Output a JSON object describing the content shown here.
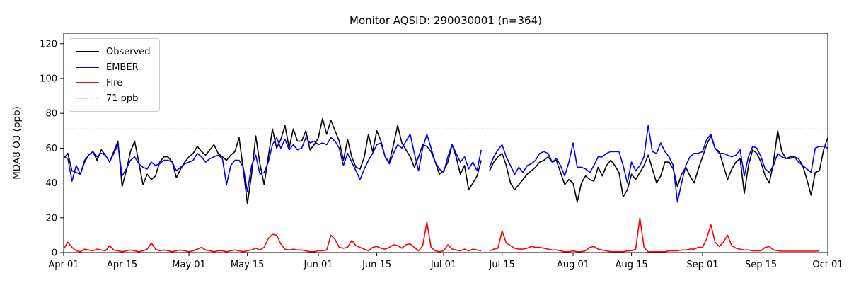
{
  "title": "Monitor AQSID: 290030001 (n=364)",
  "axes": {
    "ylabel": "MDA8 O3 (ppb)",
    "y_ticks": [
      0,
      20,
      40,
      60,
      80,
      100,
      120
    ],
    "x_ticks": [
      {
        "day": 0,
        "label": "Apr 01"
      },
      {
        "day": 14,
        "label": "Apr 15"
      },
      {
        "day": 30,
        "label": "May 01"
      },
      {
        "day": 44,
        "label": "May 15"
      },
      {
        "day": 61,
        "label": "Jun 01"
      },
      {
        "day": 75,
        "label": "Jun 15"
      },
      {
        "day": 91,
        "label": "Jul 01"
      },
      {
        "day": 105,
        "label": "Jul 15"
      },
      {
        "day": 122,
        "label": "Aug 01"
      },
      {
        "day": 136,
        "label": "Aug 15"
      },
      {
        "day": 153,
        "label": "Sep 01"
      },
      {
        "day": 167,
        "label": "Sep 15"
      },
      {
        "day": 183,
        "label": "Oct 01"
      }
    ]
  },
  "legend": {
    "items": [
      {
        "label": "Observed",
        "color": "#000000",
        "style": "solid"
      },
      {
        "label": "EMBER",
        "color": "#0000ff",
        "style": "solid"
      },
      {
        "label": "Fire",
        "color": "#ff0000",
        "style": "solid"
      },
      {
        "label": "71 ppb",
        "color": "#c8c8c8",
        "style": "dotted"
      }
    ]
  },
  "chart_data": {
    "type": "line",
    "title": "Monitor AQSID: 290030001 (n=364)",
    "ylabel": "MDA8 O3 (ppb)",
    "xlabel": "",
    "ylim": [
      0,
      126
    ],
    "x_unit": "days from Apr 01",
    "x_max_day": 183,
    "x_tick_labels": [
      "Apr 01",
      "Apr 15",
      "May 01",
      "May 15",
      "Jun 01",
      "Jun 15",
      "Jul 01",
      "Jul 15",
      "Aug 01",
      "Aug 15",
      "Sep 01",
      "Sep 15",
      "Oct 01"
    ],
    "x_tick_days": [
      0,
      14,
      30,
      44,
      61,
      75,
      91,
      105,
      122,
      136,
      153,
      167,
      183
    ],
    "grid": false,
    "legend_position": "upper left",
    "reference_line": {
      "value": 71,
      "label": "71 ppb",
      "color": "#c8c8c8",
      "style": "dotted"
    },
    "series": [
      {
        "name": "Observed",
        "color": "#000000",
        "values": [
          54,
          57,
          47,
          46,
          45,
          52,
          56,
          58,
          53,
          59,
          56,
          52,
          58,
          64,
          38,
          47,
          58,
          64,
          52,
          39,
          45,
          42,
          44,
          52,
          55,
          55,
          52,
          43,
          48,
          52,
          55,
          57,
          61,
          58,
          56,
          59,
          62,
          57,
          55,
          53,
          56,
          58,
          66,
          48,
          28,
          45,
          67,
          51,
          39,
          55,
          71,
          60,
          65,
          73,
          60,
          71,
          64,
          64,
          70,
          59,
          62,
          66,
          77,
          68,
          76,
          70,
          64,
          53,
          65,
          55,
          49,
          48,
          55,
          68,
          58,
          70,
          64,
          55,
          52,
          62,
          73,
          63,
          59,
          55,
          49,
          55,
          62,
          61,
          58,
          52,
          45,
          47,
          52,
          62,
          55,
          45,
          50,
          36,
          40,
          44,
          53,
          null,
          47,
          52,
          55,
          57,
          50,
          40,
          36,
          39,
          42,
          45,
          47,
          49,
          52,
          53,
          55,
          52,
          53,
          46,
          39,
          42,
          40,
          29,
          40,
          44,
          42,
          41,
          49,
          44,
          50,
          53,
          50,
          46,
          32,
          36,
          45,
          42,
          46,
          50,
          56,
          48,
          40,
          44,
          52,
          52,
          48,
          38,
          45,
          49,
          44,
          40,
          48,
          55,
          62,
          67,
          60,
          58,
          50,
          42,
          48,
          52,
          54,
          34,
          50,
          59,
          57,
          52,
          44,
          40,
          52,
          70,
          58,
          54,
          55,
          55,
          54,
          50,
          42,
          33,
          46,
          47,
          59,
          66
        ]
      },
      {
        "name": "EMBER",
        "color": "#0000ff",
        "values": [
          55,
          54,
          41,
          50,
          45,
          53,
          56,
          58,
          55,
          57,
          56,
          52,
          57,
          62,
          44,
          48,
          53,
          55,
          51,
          49,
          48,
          52,
          50,
          51,
          53,
          53,
          52,
          47,
          49,
          51,
          52,
          53,
          57,
          55,
          52,
          54,
          55,
          56,
          54,
          39,
          50,
          53,
          53,
          49,
          35,
          50,
          56,
          45,
          46,
          52,
          62,
          66,
          60,
          65,
          59,
          62,
          59,
          60,
          66,
          63,
          64,
          62,
          63,
          62,
          66,
          64,
          60,
          50,
          57,
          52,
          47,
          42,
          48,
          53,
          57,
          62,
          63,
          55,
          51,
          57,
          62,
          60,
          64,
          68,
          57,
          47,
          60,
          68,
          60,
          52,
          48,
          46,
          55,
          62,
          57,
          52,
          55,
          48,
          52,
          47,
          59,
          null,
          49,
          55,
          59,
          62,
          55,
          50,
          45,
          49,
          46,
          50,
          51,
          53,
          57,
          58,
          57,
          52,
          54,
          50,
          44,
          52,
          63,
          49,
          49,
          48,
          46,
          50,
          55,
          55,
          57,
          58,
          58,
          58,
          50,
          40,
          52,
          47,
          50,
          55,
          73,
          58,
          57,
          63,
          58,
          55,
          50,
          29,
          40,
          50,
          55,
          57,
          57,
          58,
          65,
          68,
          60,
          57,
          57,
          56,
          55,
          56,
          59,
          44,
          55,
          61,
          60,
          55,
          48,
          46,
          50,
          57,
          55,
          54,
          54,
          55,
          52,
          50,
          48,
          46,
          60,
          61,
          61,
          60
        ]
      },
      {
        "name": "Fire",
        "color": "#ff0000",
        "values": [
          2,
          6,
          3,
          1,
          0.5,
          2,
          1.5,
          1,
          2,
          1.5,
          1,
          4,
          1.5,
          1,
          0.5,
          1,
          1.5,
          1,
          0.5,
          1,
          2,
          5.5,
          2,
          1,
          1.5,
          1,
          0.5,
          1,
          1.5,
          1,
          0.5,
          1,
          2,
          3,
          1.5,
          1,
          0.5,
          1,
          1,
          0.5,
          1,
          1.5,
          1,
          0.5,
          1,
          1.5,
          2.5,
          1.5,
          3,
          8,
          10.5,
          10,
          5,
          2,
          1.5,
          2,
          1.5,
          1.5,
          1,
          0.5,
          0.5,
          1,
          1,
          1.5,
          10,
          7.5,
          3,
          2.5,
          3,
          7,
          4,
          3,
          2,
          1,
          3,
          3.5,
          2.5,
          2,
          3,
          4.5,
          4,
          2.5,
          4.5,
          5,
          3,
          1,
          4,
          17.5,
          3,
          1,
          0.5,
          1,
          4.5,
          2,
          1.5,
          1,
          2,
          1,
          2,
          1.5,
          1,
          null,
          1,
          2,
          2.5,
          12.5,
          5.5,
          4,
          2.5,
          2,
          2,
          2.5,
          3.5,
          3,
          3,
          2.5,
          2,
          1.5,
          1.5,
          1,
          0.5,
          0.5,
          1,
          0.5,
          0.5,
          1,
          3,
          3.5,
          2,
          1.5,
          1,
          0.5,
          0.5,
          0.5,
          0.5,
          1,
          1,
          2,
          20,
          3,
          0.5,
          0.5,
          0.5,
          0.5,
          0.5,
          1,
          1,
          1,
          1.5,
          1.5,
          2,
          2,
          3,
          3,
          8,
          16,
          6,
          3.5,
          6,
          10,
          4,
          2.5,
          2,
          1.5,
          1.5,
          1,
          1,
          1,
          3,
          3.5,
          1.5,
          1,
          0.8,
          0.8,
          0.8,
          0.8,
          0.8,
          0.8,
          0.8,
          0.8,
          0.8,
          1,
          null,
          null
        ]
      }
    ]
  }
}
